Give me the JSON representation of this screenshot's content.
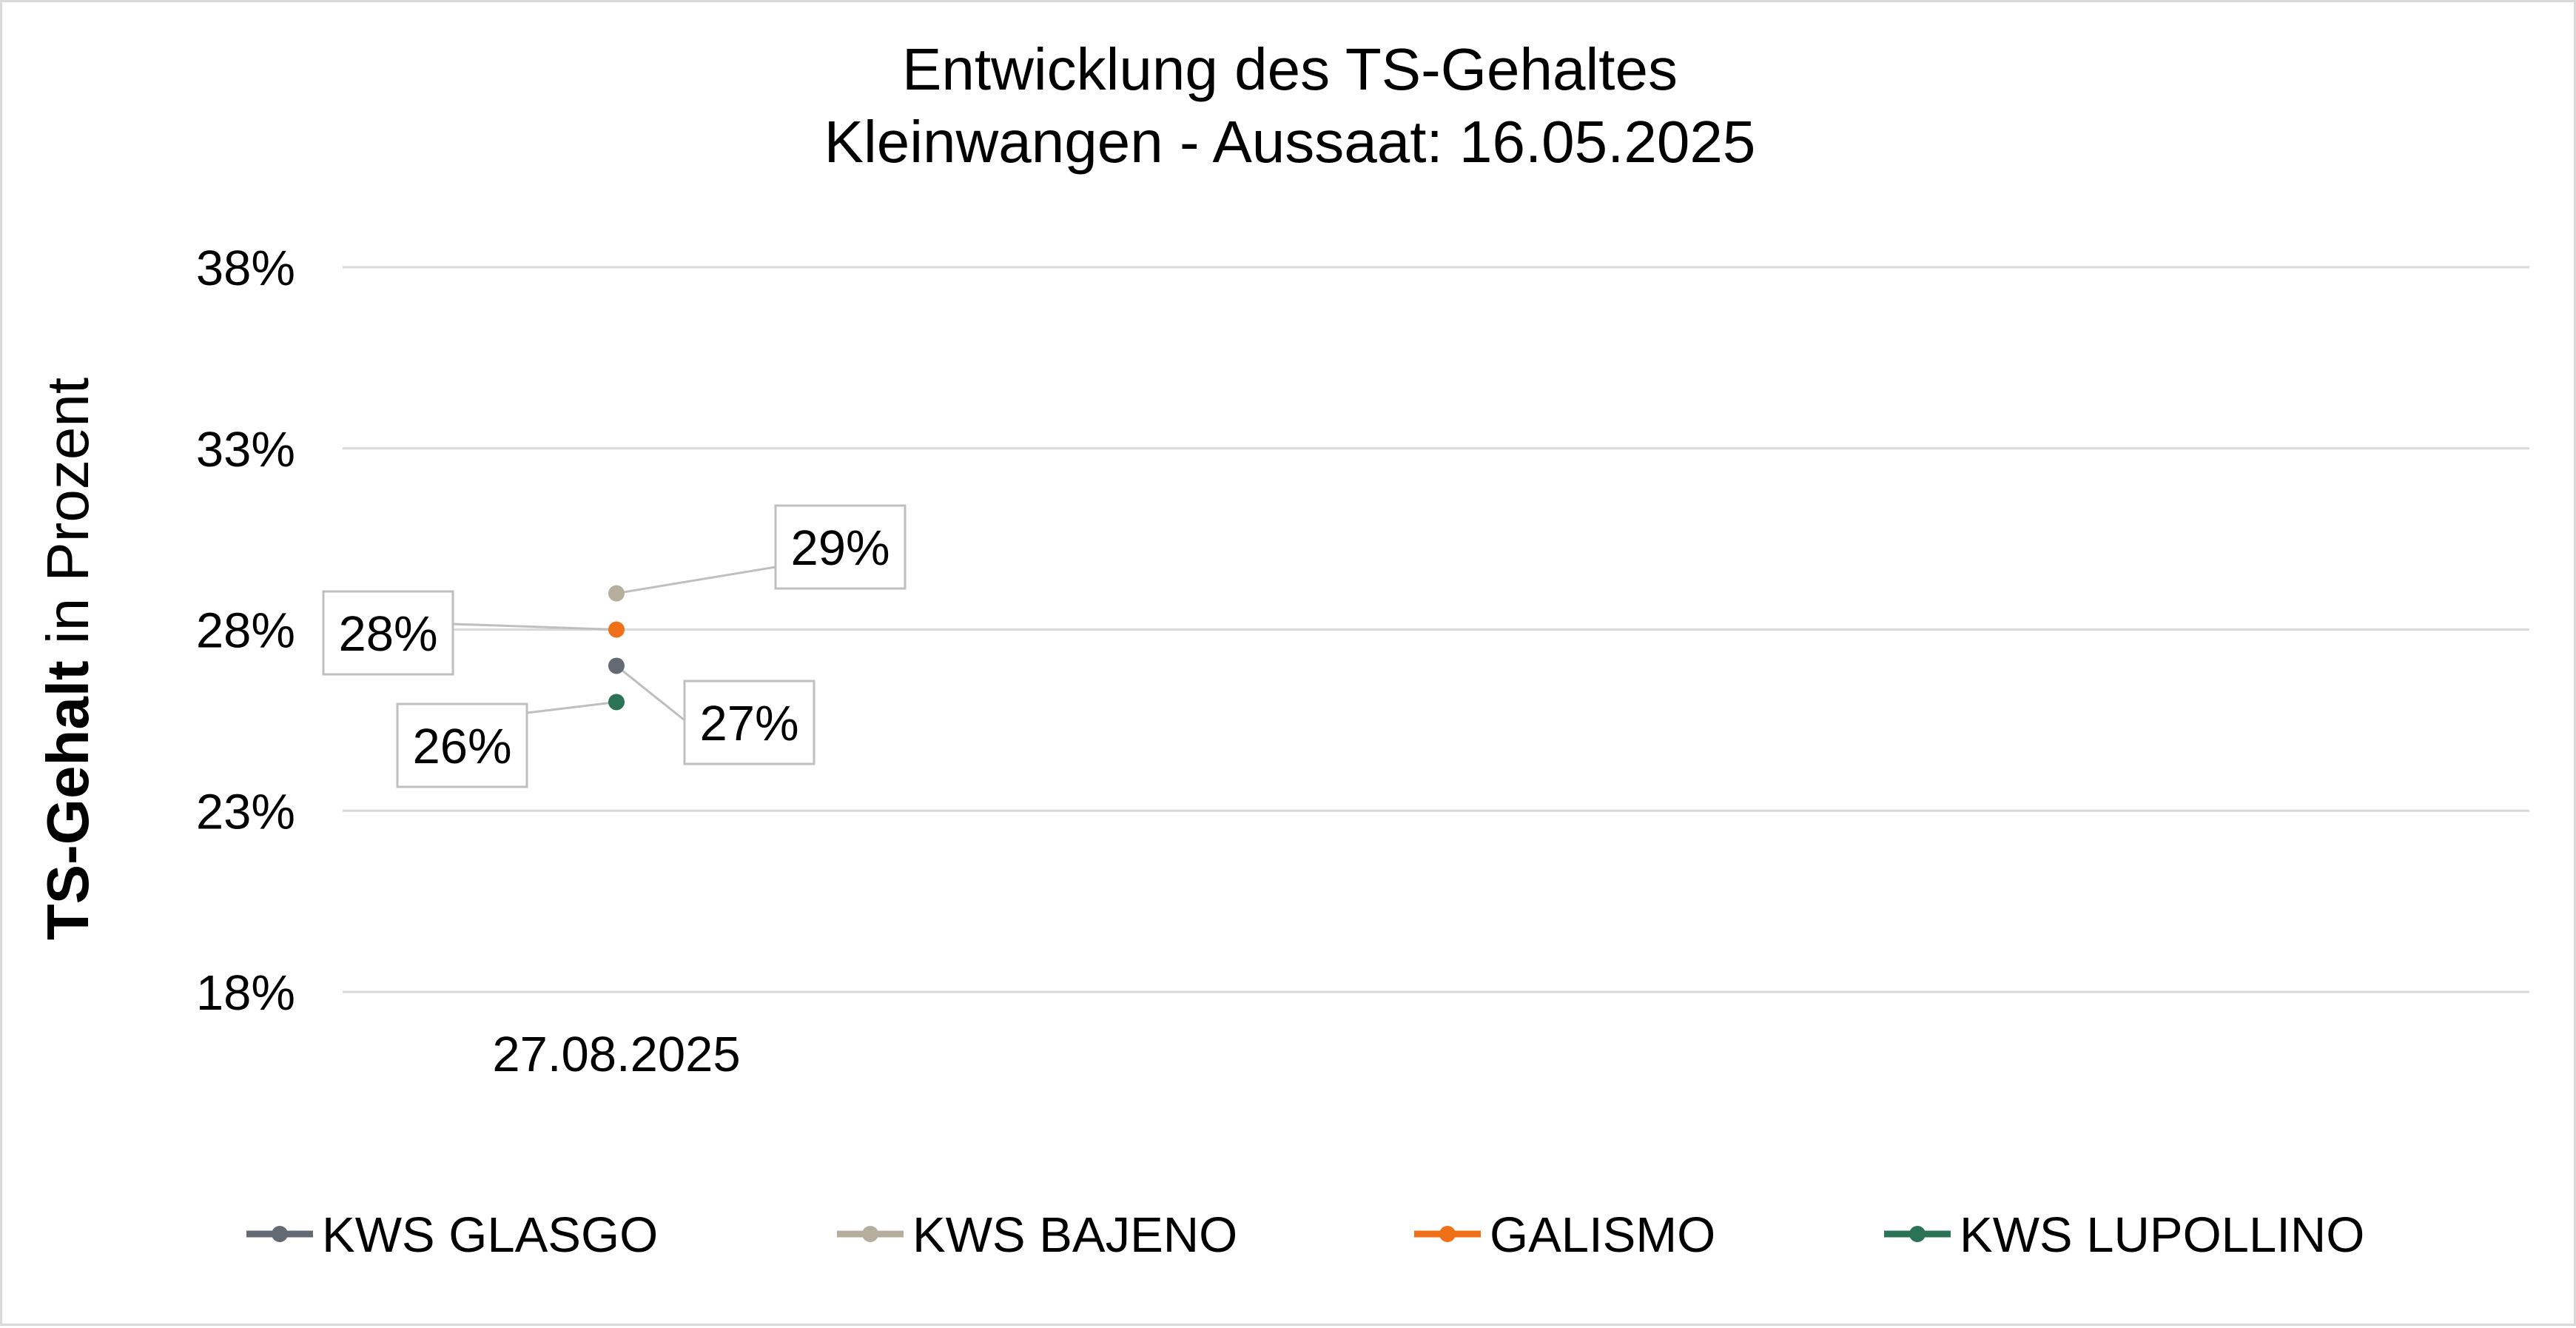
{
  "chart_data": {
    "type": "line",
    "title": "Entwicklung des TS-Gehaltes",
    "subtitle": "Kleinwangen - Aussaat: 16.05.2025",
    "ylabel_bold": "TS-Gehalt",
    "ylabel_rest": " in Prozent",
    "xlabel": "",
    "categories": [
      "27.08.2025"
    ],
    "ylim": [
      0.18,
      0.38
    ],
    "yticks": [
      0.18,
      0.23,
      0.28,
      0.33,
      0.38
    ],
    "ytick_labels": [
      "18%",
      "23%",
      "28%",
      "33%",
      "38%"
    ],
    "grid": true,
    "legend_position": "bottom",
    "series": [
      {
        "name": "KWS GLASGO",
        "color": "#636a73",
        "values": [
          0.27
        ],
        "data_labels": [
          "27%"
        ]
      },
      {
        "name": "KWS BAJENO",
        "color": "#b5ae9c",
        "values": [
          0.29
        ],
        "data_labels": [
          "29%"
        ]
      },
      {
        "name": "GALISMO",
        "color": "#f07018",
        "values": [
          0.28
        ],
        "data_labels": [
          "28%"
        ]
      },
      {
        "name": "KWS LUPOLLINO",
        "color": "#2a7355",
        "values": [
          0.26
        ],
        "data_labels": [
          "26%"
        ]
      }
    ]
  }
}
